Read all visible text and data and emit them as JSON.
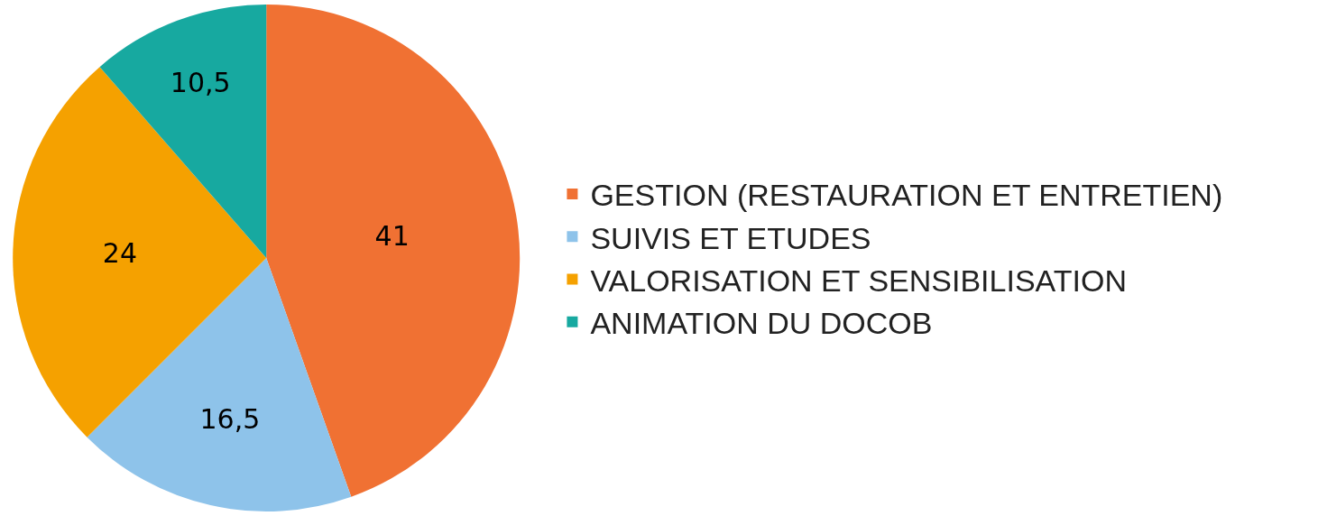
{
  "chart_data": {
    "type": "pie",
    "categories": [
      "GESTION (RESTAURATION ET ENTRETIEN)",
      "SUIVIS ET ETUDES",
      "VALORISATION ET SENSIBILISATION",
      "ANIMATION DU DOCOB"
    ],
    "values": [
      41,
      16.5,
      24,
      10.5
    ],
    "colors": [
      "#f07133",
      "#8ec3ea",
      "#f5a100",
      "#17a9a0"
    ],
    "value_labels": [
      "41",
      "16,5",
      "24",
      "10,5"
    ],
    "legend": "right"
  }
}
